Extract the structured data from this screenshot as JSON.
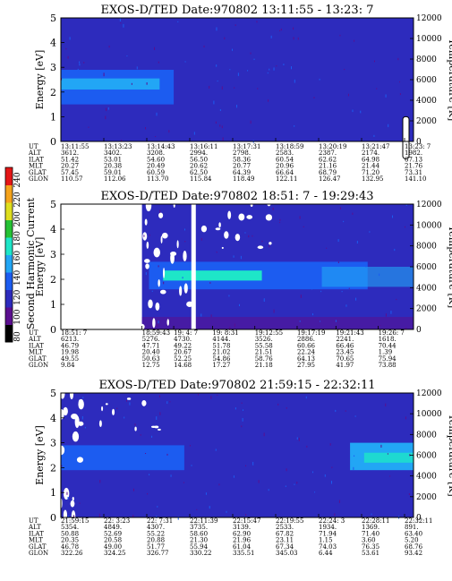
{
  "chart_data": {
    "type": "heatmap",
    "colorbar": {
      "label": "Second Harmonic Current",
      "ticks": [
        "80",
        "100",
        "120",
        "140",
        "160",
        "180",
        "200",
        "220",
        "240"
      ],
      "colors": [
        "#000000",
        "#5b0f8f",
        "#2d2bbd",
        "#1c5cf0",
        "#22a6f5",
        "#1ee6c8",
        "#25c234",
        "#dede1e",
        "#f5a31b",
        "#e41616"
      ]
    },
    "panels": [
      {
        "title": "EXOS-D/TED   Date:970802  13:11:55 - 13:23: 7",
        "ylabel": "Energy [eV]",
        "y2label": "Temperature [K]",
        "ylim": [
          0,
          5
        ],
        "y2lim": [
          0,
          12000
        ],
        "yticks": [
          "0",
          "1",
          "2",
          "3",
          "4",
          "5"
        ],
        "y2ticks": [
          "0",
          "2000",
          "4000",
          "6000",
          "8000",
          "10000",
          "12000"
        ],
        "time_range": [
          "13:11:55",
          "13:23: 7"
        ],
        "table_labels": [
          "UT",
          "ALT",
          "ILAT",
          "MLT",
          "GLAT",
          "GLON"
        ],
        "columns": [
          [
            "13:11:55",
            "3612.",
            "51.42",
            "20.27",
            "57.45",
            "110.57"
          ],
          [
            "13:13:23",
            "3402.",
            "53.01",
            "20.38",
            "59.01",
            "112.06"
          ],
          [
            "13:14:43",
            "3208.",
            "54.60",
            "20.49",
            "60.59",
            "113.70"
          ],
          [
            "13:16:11",
            "2994.",
            "56.50",
            "20.62",
            "62.50",
            "115.84"
          ],
          [
            "13:17:31",
            "2798.",
            "58.36",
            "20.77",
            "64.39",
            "118.49"
          ],
          [
            "13:18:59",
            "2583.",
            "60.54",
            "20.96",
            "66.64",
            "122.11"
          ],
          [
            "13:20:19",
            "2387.",
            "62.62",
            "21.16",
            "68.79",
            "126.47"
          ],
          [
            "13:21:47",
            "2174.",
            "64.98",
            "21.44",
            "71.20",
            "132.95"
          ],
          [
            "13:23: 7",
            "1982.",
            "67.13",
            "21.76",
            "73.31",
            "141.10"
          ]
        ]
      },
      {
        "title": "EXOS-D/TED   Date:970802  18:51: 7 - 19:29:43",
        "ylabel": "Energy [eV]",
        "y2label": "Temperature [K]",
        "ylim": [
          0,
          5
        ],
        "y2lim": [
          0,
          12000
        ],
        "yticks": [
          "0",
          "1",
          "2",
          "3",
          "4",
          "5"
        ],
        "y2ticks": [
          "0",
          "2000",
          "4000",
          "6000",
          "8000",
          "10000",
          "12000"
        ],
        "time_range": [
          "18:51: 7",
          "19:29:43"
        ],
        "table_labels": [
          "UT",
          "ALT",
          "ILAT",
          "MLT",
          "GLAT",
          "GLON"
        ],
        "columns": [
          [
            "18:51: 7",
            "6213.",
            "46.79",
            "19.98",
            "49.55",
            "9.84"
          ],
          [
            "18:59:43",
            "5276.",
            "47.71",
            "20.40",
            "50.63",
            "12.75"
          ],
          [
            "19: 4: 7",
            "4730.",
            "49.22",
            "20.67",
            "52.25",
            "14.68"
          ],
          [
            "19: 8:31",
            "4144.",
            "51.78",
            "21.02",
            "54.86",
            "17.27"
          ],
          [
            "19:12:55",
            "3526.",
            "55.58",
            "21.51",
            "58.76",
            "21.18"
          ],
          [
            "19:17:19",
            "2886.",
            "60.66",
            "22.24",
            "64.13",
            "27.95"
          ],
          [
            "19:21:43",
            "2241.",
            "66.46",
            "23.45",
            "70.65",
            "41.97"
          ],
          [
            "19:26: 7",
            "1618.",
            "70.44",
            "1.39",
            "75.94",
            "73.88"
          ]
        ]
      },
      {
        "title": "EXOS-D/TED   Date:970802  21:59:15 - 22:32:11",
        "ylabel": "Energy [eV]",
        "y2label": "Temperature [K]",
        "ylim": [
          0,
          5
        ],
        "y2lim": [
          0,
          12000
        ],
        "yticks": [
          "0",
          "1",
          "2",
          "3",
          "4",
          "5"
        ],
        "y2ticks": [
          "0",
          "2000",
          "4000",
          "6000",
          "8000",
          "10000",
          "12000"
        ],
        "time_range": [
          "21:59:15",
          "22:32:11"
        ],
        "table_labels": [
          "UT",
          "ALT",
          "ILAT",
          "MLT",
          "GLAT",
          "GLON"
        ],
        "columns": [
          [
            "21:59:15",
            "5354.",
            "50.88",
            "20.35",
            "46.78",
            "322.26"
          ],
          [
            "22: 3:23",
            "4849.",
            "52.69",
            "20.58",
            "49.00",
            "324.25"
          ],
          [
            "22: 7:31",
            "4307.",
            "55.22",
            "20.88",
            "51.77",
            "326.77"
          ],
          [
            "22:11:39",
            "3735.",
            "58.60",
            "21.30",
            "55.94",
            "330.22"
          ],
          [
            "22:15:47",
            "3139.",
            "62.90",
            "21.96",
            "61.04",
            "335.51"
          ],
          [
            "22:19:55",
            "2533.",
            "67.82",
            "23.11",
            "67.34",
            "345.03"
          ],
          [
            "22:24: 3",
            "1934.",
            "71.94",
            "1.15",
            "74.03",
            "6.44"
          ],
          [
            "22:28:11",
            "1369.",
            "71.40",
            "3.60",
            "76.35",
            "53.61"
          ],
          [
            "22:32:11",
            "891.",
            "63.40",
            "5.20",
            "68.76",
            "93.42"
          ]
        ]
      }
    ]
  }
}
